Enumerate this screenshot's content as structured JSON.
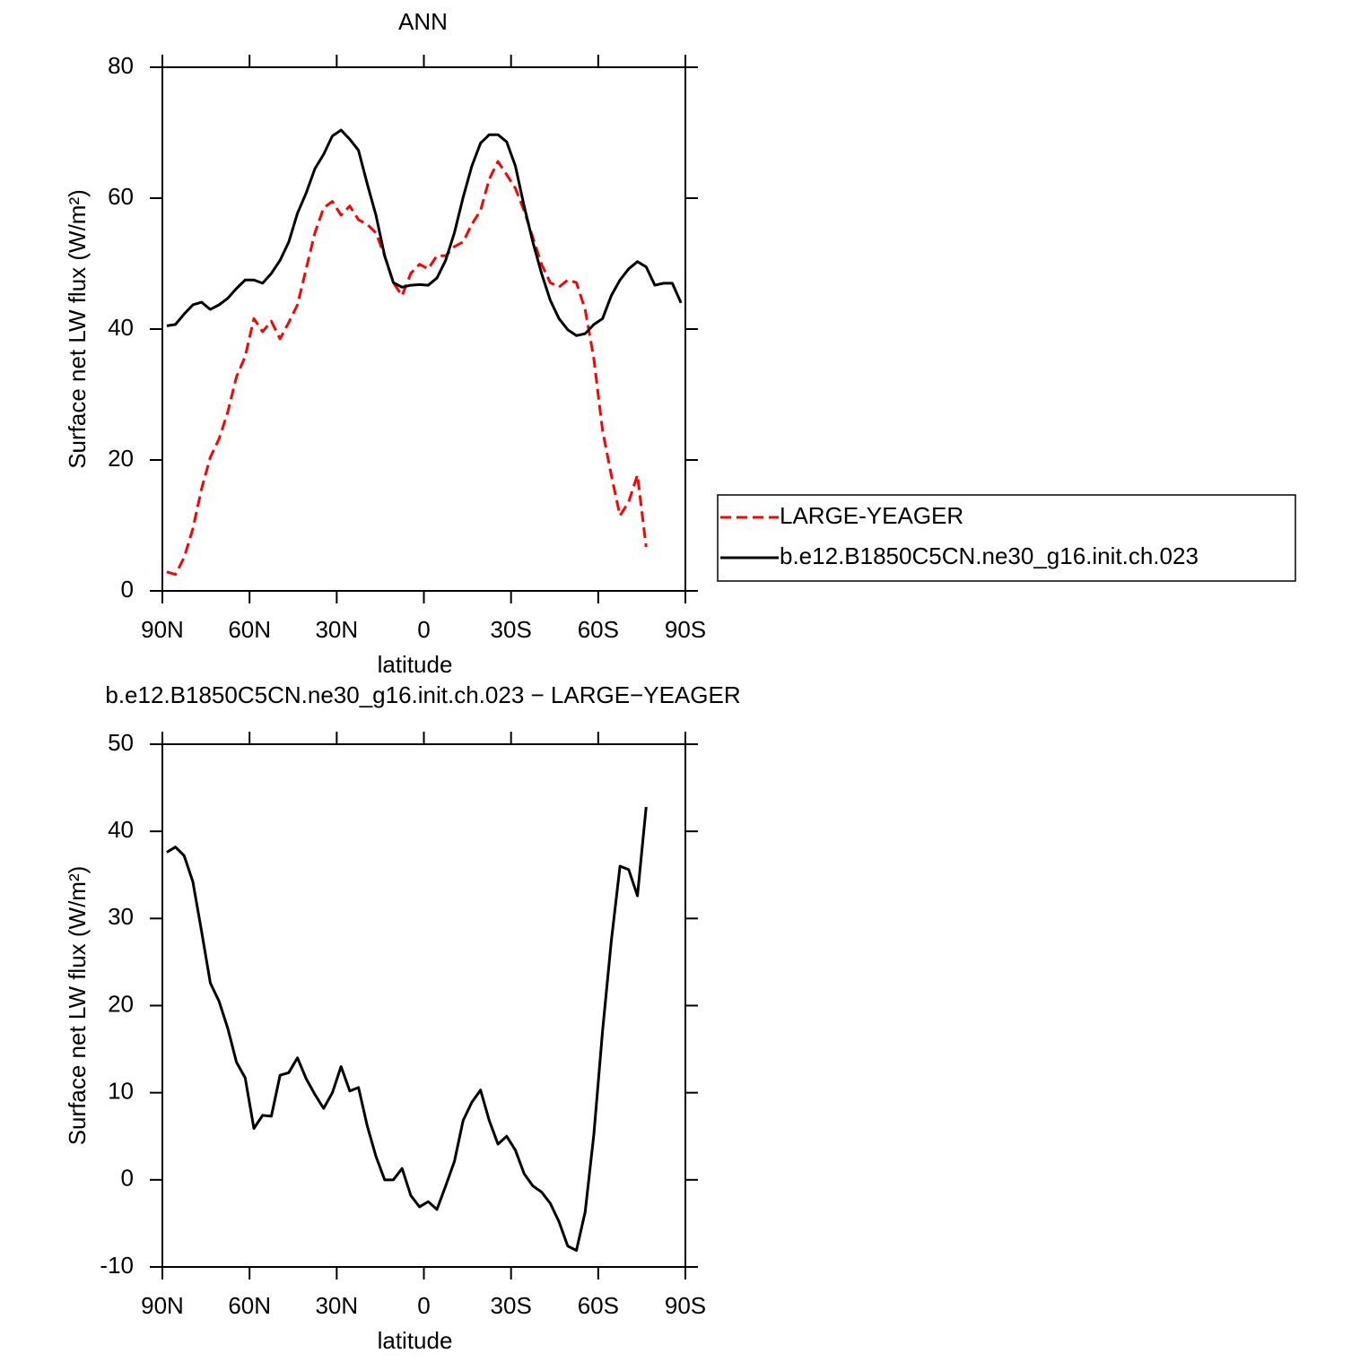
{
  "chart_data": [
    {
      "type": "line",
      "title": "ANN",
      "xlabel": "latitude",
      "ylabel": "Surface net LW flux (W/m²)",
      "x": [
        88.5,
        85.5,
        82.5,
        79.5,
        76.5,
        73.5,
        70.5,
        67.5,
        64.5,
        61.5,
        58.5,
        55.5,
        52.5,
        49.5,
        46.5,
        43.5,
        40.5,
        37.5,
        34.5,
        31.5,
        28.5,
        25.5,
        22.5,
        19.5,
        16.5,
        13.5,
        10.5,
        7.5,
        4.5,
        1.5,
        -1.5,
        -4.5,
        -7.5,
        -10.5,
        -13.5,
        -16.5,
        -19.5,
        -22.5,
        -25.5,
        -28.5,
        -31.5,
        -34.5,
        -37.5,
        -40.5,
        -43.5,
        -46.5,
        -49.5,
        -52.5,
        -55.5,
        -58.5,
        -61.5,
        -64.5,
        -67.5,
        -70.5,
        -73.5,
        -76.5,
        -79.5,
        -82.5,
        -85.5,
        -88.5
      ],
      "series": [
        {
          "name": "LARGE-YEAGER",
          "color": "#ff0000",
          "style": "dashed",
          "values": [
            2.9,
            2.5,
            5.1,
            9.5,
            15.6,
            20.4,
            23.2,
            27.3,
            32.7,
            35.8,
            41.6,
            39.6,
            41.2,
            38.5,
            41.0,
            43.7,
            49.2,
            54.7,
            58.5,
            59.5,
            57.4,
            58.8,
            56.7,
            56.0,
            54.7,
            51.2,
            47.1,
            45.1,
            48.5,
            49.9,
            49.2,
            51.2,
            51.2,
            52.6,
            53.3,
            56.0,
            58.1,
            62.9,
            65.6,
            63.6,
            61.5,
            58.1,
            54.0,
            49.9,
            47.1,
            46.4,
            47.5,
            47.1,
            43.0,
            35.5,
            24.5,
            17.7,
            11.5,
            13.6,
            17.7,
            6.7,
            null,
            null,
            null,
            null
          ]
        },
        {
          "name": "b.e12.B1850C5CN.ne30_g16.init.ch.023",
          "color": "#000000",
          "style": "solid",
          "values": [
            40.5,
            40.7,
            42.3,
            43.7,
            44.1,
            43.0,
            43.7,
            44.7,
            46.2,
            47.5,
            47.5,
            47.0,
            48.5,
            50.5,
            53.3,
            57.7,
            60.8,
            64.5,
            66.7,
            69.5,
            70.4,
            69.0,
            67.3,
            62.2,
            57.4,
            51.2,
            47.1,
            46.4,
            46.7,
            46.8,
            46.7,
            47.8,
            50.5,
            54.7,
            60.1,
            64.9,
            68.4,
            69.7,
            69.7,
            68.6,
            64.9,
            58.8,
            53.3,
            48.5,
            44.4,
            41.6,
            39.9,
            39.0,
            39.3,
            40.7,
            41.6,
            45.1,
            47.5,
            49.2,
            50.3,
            49.5,
            46.7,
            47.0,
            47.0,
            44.0
          ]
        }
      ],
      "xlim": [
        90,
        -90
      ],
      "xticks": [
        {
          "value": 90,
          "label": "90N"
        },
        {
          "value": 60,
          "label": "60N"
        },
        {
          "value": 30,
          "label": "30N"
        },
        0,
        {
          "value": -30,
          "label": "30S"
        },
        {
          "value": -60,
          "label": "60S"
        },
        {
          "value": -90,
          "label": "90S"
        }
      ],
      "ylim": [
        0,
        80
      ],
      "yticks": [
        0,
        20,
        40,
        60,
        80
      ],
      "legend": "right"
    },
    {
      "type": "line",
      "title": "b.e12.B1850C5CN.ne30_g16.init.ch.023 − LARGE−YEAGER",
      "xlabel": "latitude",
      "ylabel": "Surface net LW flux (W/m²)",
      "x": [
        88.5,
        85.5,
        82.5,
        79.5,
        76.5,
        73.5,
        70.5,
        67.5,
        64.5,
        61.5,
        58.5,
        55.5,
        52.5,
        49.5,
        46.5,
        43.5,
        40.5,
        37.5,
        34.5,
        31.5,
        28.5,
        25.5,
        22.5,
        19.5,
        16.5,
        13.5,
        10.5,
        7.5,
        4.5,
        1.5,
        -1.5,
        -4.5,
        -7.5,
        -10.5,
        -13.5,
        -16.5,
        -19.5,
        -22.5,
        -25.5,
        -28.5,
        -31.5,
        -34.5,
        -37.5,
        -40.5,
        -43.5,
        -46.5,
        -49.5,
        -52.5,
        -55.5,
        -58.5,
        -61.5,
        -64.5,
        -67.5,
        -70.5,
        -73.5,
        -76.5,
        -79.5,
        -82.5,
        -85.5,
        -88.5
      ],
      "series": [
        {
          "color": "#000000",
          "style": "solid",
          "values": [
            37.6,
            38.2,
            37.2,
            34.2,
            28.5,
            22.6,
            20.5,
            17.4,
            13.5,
            11.7,
            5.9,
            7.4,
            7.3,
            12.0,
            12.3,
            14.0,
            11.6,
            9.8,
            8.2,
            10.0,
            13.0,
            10.2,
            10.6,
            6.2,
            2.7,
            0.0,
            0.0,
            1.3,
            -1.8,
            -3.1,
            -2.5,
            -3.4,
            -0.7,
            2.1,
            6.8,
            8.9,
            10.3,
            6.8,
            4.1,
            5.0,
            3.4,
            0.7,
            -0.7,
            -1.4,
            -2.7,
            -4.8,
            -7.6,
            -8.1,
            -3.7,
            5.2,
            17.1,
            27.4,
            36.0,
            35.6,
            32.6,
            42.8,
            null,
            null,
            null,
            null
          ]
        }
      ],
      "xlim": [
        90,
        -90
      ],
      "xticks": [
        {
          "value": 90,
          "label": "90N"
        },
        {
          "value": 60,
          "label": "60N"
        },
        {
          "value": 30,
          "label": "30N"
        },
        0,
        {
          "value": -30,
          "label": "30S"
        },
        {
          "value": -60,
          "label": "60S"
        },
        {
          "value": -90,
          "label": "90S"
        }
      ],
      "ylim": [
        -10,
        50
      ],
      "yticks": [
        -10,
        0,
        10,
        20,
        30,
        40,
        50
      ]
    }
  ]
}
